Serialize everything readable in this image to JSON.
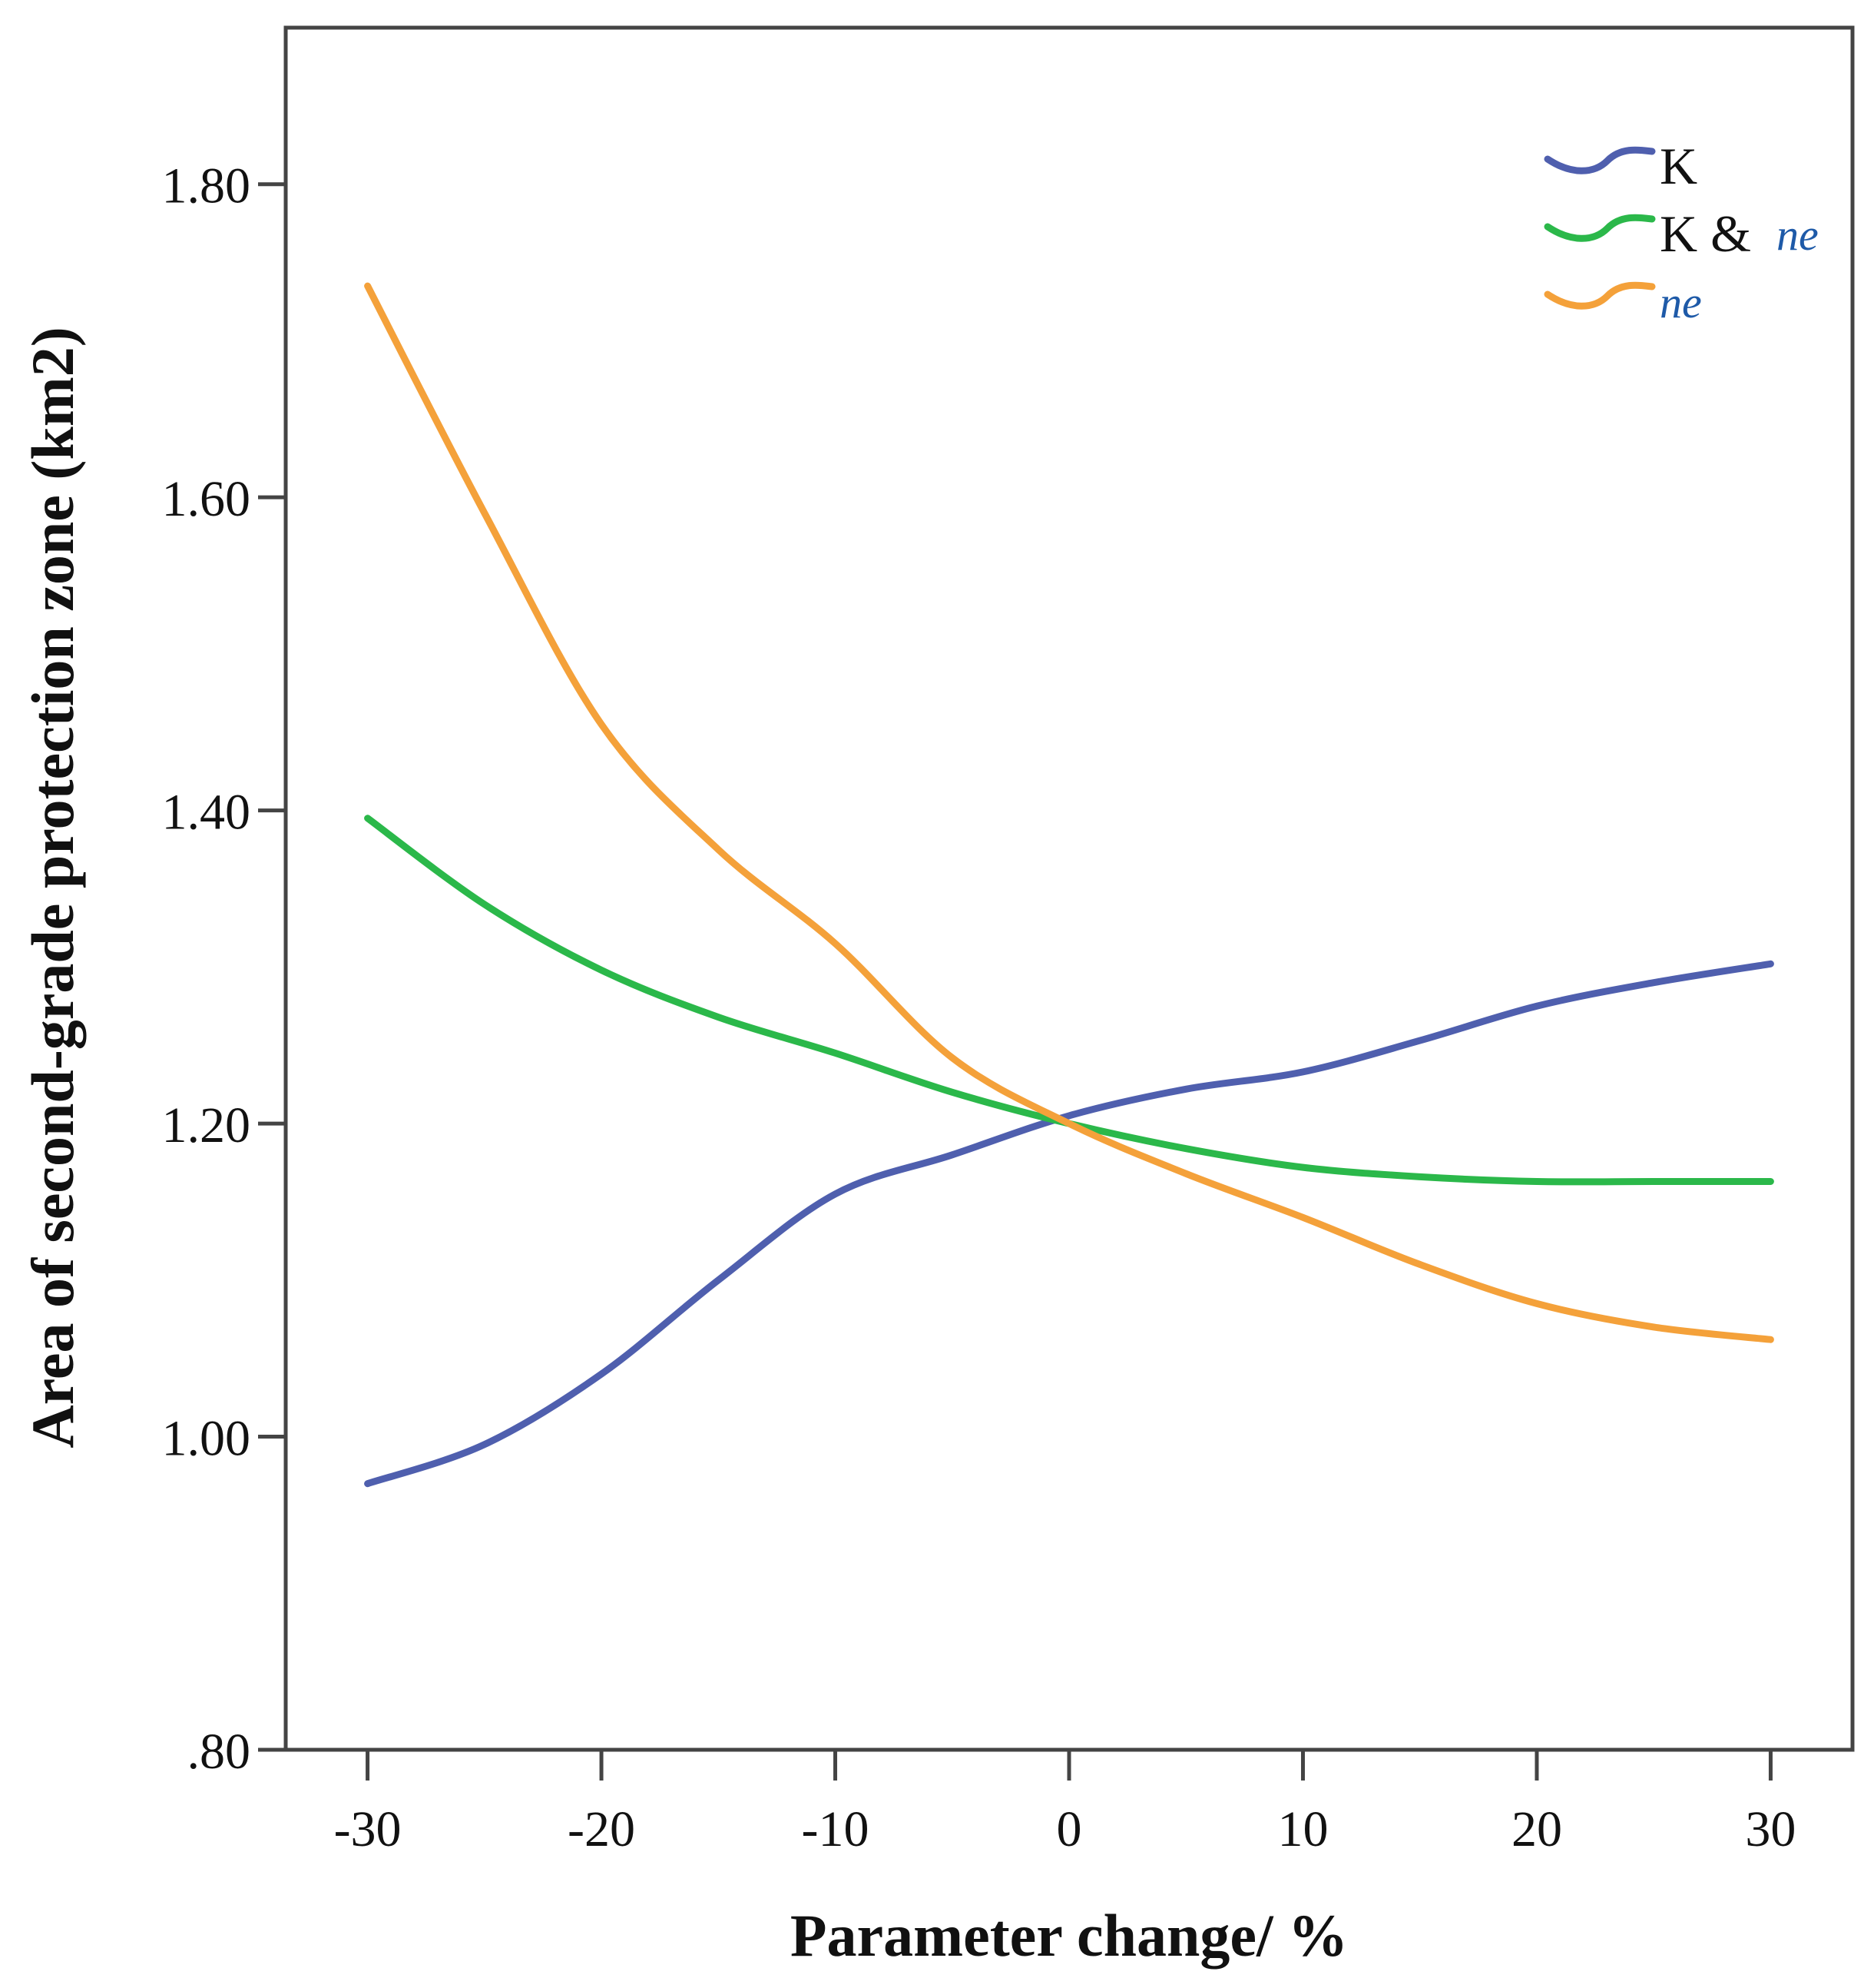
{
  "chart_data": {
    "type": "line",
    "title": "",
    "xlabel": "Parameter change/ %",
    "ylabel": "Area of second-grade protection zone (km2)",
    "xlim": [
      -33.5,
      33.5
    ],
    "ylim": [
      0.8,
      1.9
    ],
    "xticks": [
      -30,
      -20,
      -10,
      0,
      10,
      20,
      30
    ],
    "xtick_labels": [
      "-30",
      "-20",
      "-10",
      "0",
      "10",
      "20",
      "30"
    ],
    "yticks": [
      0.8,
      1.0,
      1.2,
      1.4,
      1.6,
      1.8
    ],
    "ytick_labels": [
      ".80",
      "1.00",
      "1.20",
      "1.40",
      "1.60",
      "1.80"
    ],
    "grid": false,
    "legend_position": "top-right",
    "x": [
      -30,
      -25,
      -20,
      -15,
      -10,
      -5,
      0,
      5,
      10,
      15,
      20,
      25,
      30
    ],
    "series": [
      {
        "name": "K",
        "legend_label": "K",
        "legend_suffix": "",
        "color": "#4f5fae",
        "values": [
          0.97,
          0.995,
          1.04,
          1.1,
          1.155,
          1.18,
          1.205,
          1.222,
          1.233,
          1.253,
          1.275,
          1.29,
          1.302
        ]
      },
      {
        "name": "K & ne",
        "legend_label": "K &",
        "legend_suffix": "ne",
        "color": "#2bb84a",
        "values": [
          1.395,
          1.34,
          1.298,
          1.268,
          1.245,
          1.22,
          1.2,
          1.184,
          1.172,
          1.166,
          1.163,
          1.163,
          1.163
        ]
      },
      {
        "name": "ne",
        "legend_label": "",
        "legend_suffix": "ne",
        "color": "#f4a13a",
        "values": [
          1.735,
          1.59,
          1.455,
          1.375,
          1.315,
          1.242,
          1.2,
          1.168,
          1.14,
          1.11,
          1.085,
          1.07,
          1.062
        ]
      }
    ]
  }
}
